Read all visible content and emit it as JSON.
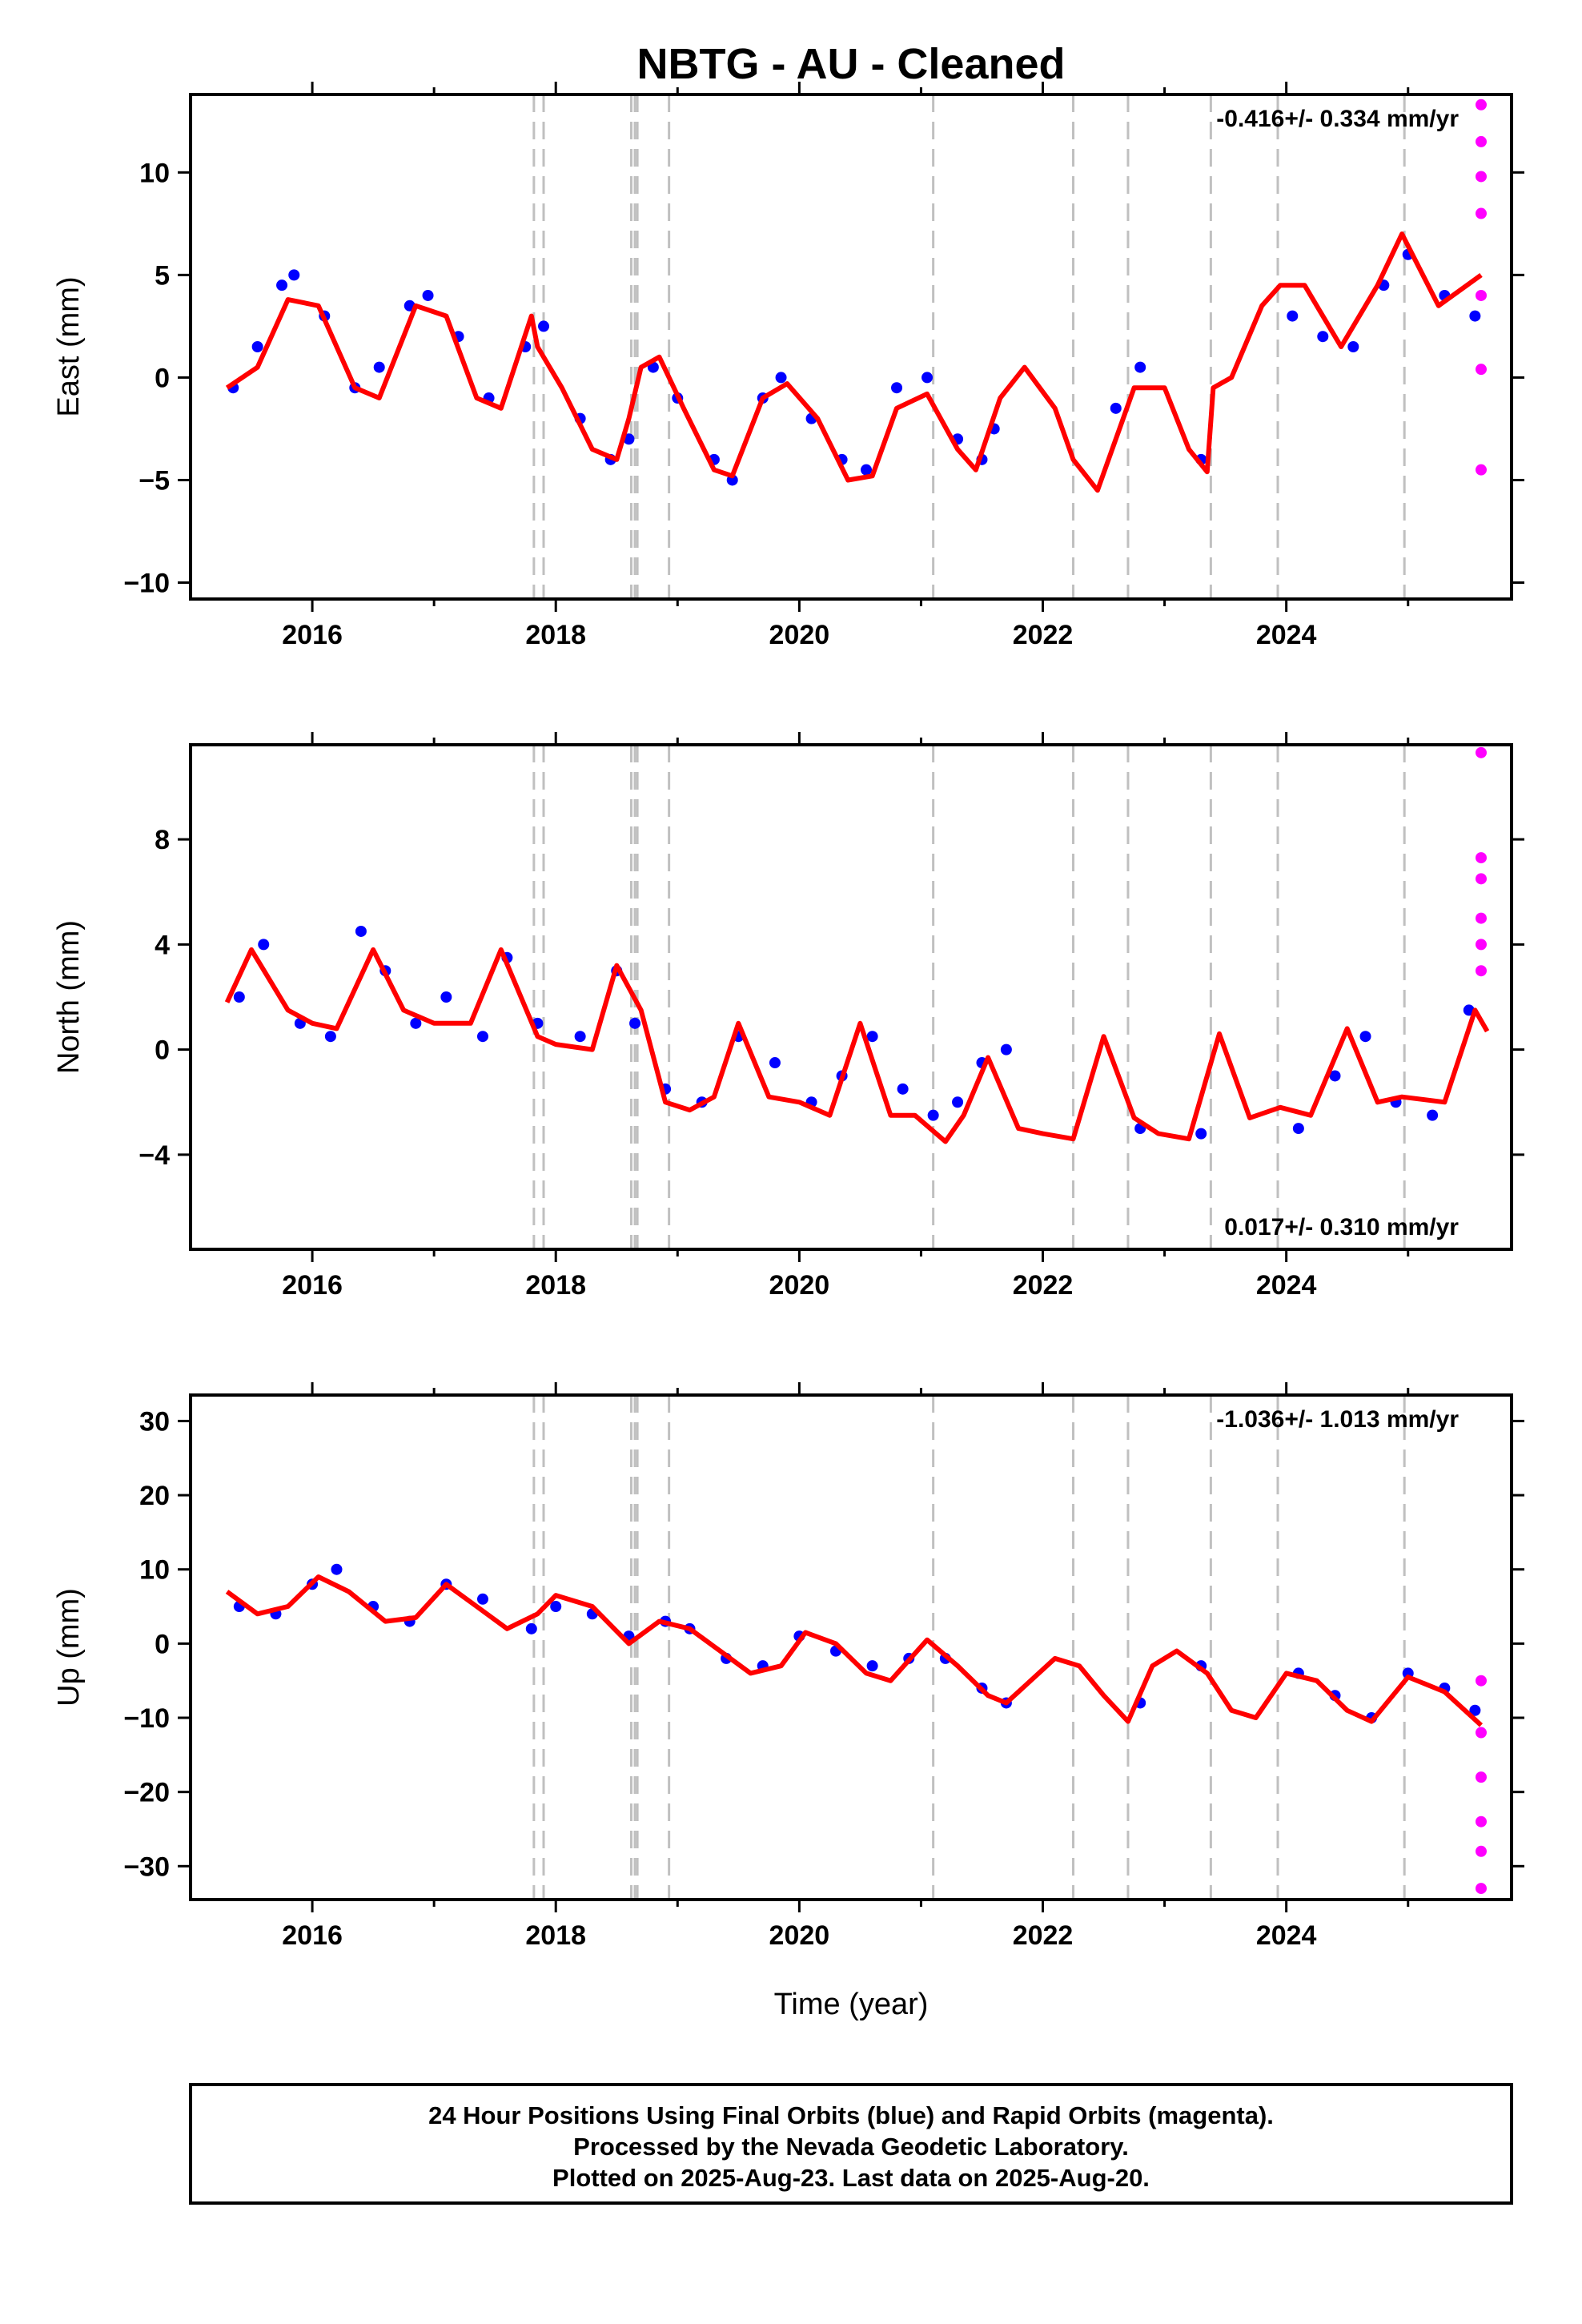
{
  "title": "NBTG  - AU - Cleaned",
  "xlabel": "Time (year)",
  "footer": {
    "lines": [
      "24 Hour Positions Using Final Orbits (blue) and Rapid Orbits (magenta).",
      "Processed by the Nevada Geodetic Laboratory.",
      "Plotted on 2025-Aug-23. Last data on 2025-Aug-20."
    ]
  },
  "colors": {
    "final_orbits": "#0000ff",
    "rapid_orbits": "#ff00ff",
    "model_fit": "#ff0000",
    "events": "#c0c0c0"
  },
  "chart_data": [
    {
      "type": "scatter",
      "ylabel": "East (mm)",
      "rate": "-0.416+/- 0.334 mm/yr",
      "rate_position": "top-right",
      "xlim": [
        2015.0,
        2025.85
      ],
      "ylim": [
        -10.8,
        13.8
      ],
      "xticks": [
        2016,
        2018,
        2020,
        2022,
        2024
      ],
      "yticks": [
        -10,
        -5,
        0,
        5,
        10
      ],
      "series": [
        {
          "name": "Final Orbits",
          "kind": "points",
          "color": "#0000ff",
          "x": [
            2015.35,
            2015.55,
            2015.75,
            2015.85,
            2016.1,
            2016.35,
            2016.55,
            2016.8,
            2016.95,
            2017.2,
            2017.45,
            2017.75,
            2017.9,
            2018.2,
            2018.45,
            2018.6,
            2018.8,
            2019.0,
            2019.3,
            2019.45,
            2019.7,
            2019.85,
            2020.1,
            2020.35,
            2020.55,
            2020.8,
            2021.05,
            2021.3,
            2021.5,
            2021.6,
            2022.6,
            2022.8,
            2023.3,
            2024.05,
            2024.3,
            2024.55,
            2024.8,
            2025.0,
            2025.3,
            2025.55
          ],
          "y": [
            -0.5,
            1.5,
            4.5,
            5.0,
            3.0,
            -0.5,
            0.5,
            3.5,
            4.0,
            2.0,
            -1.0,
            1.5,
            2.5,
            -2.0,
            -4.0,
            -3.0,
            0.5,
            -1.0,
            -4.0,
            -5.0,
            -1.0,
            0.0,
            -2.0,
            -4.0,
            -4.5,
            -0.5,
            0.0,
            -3.0,
            -4.0,
            -2.5,
            -1.5,
            0.5,
            -4.0,
            3.0,
            2.0,
            1.5,
            4.5,
            6.0,
            4.0,
            3.0
          ]
        },
        {
          "name": "Rapid Orbits",
          "kind": "points",
          "color": "#ff00ff",
          "x": [
            2025.6,
            2025.6,
            2025.6,
            2025.6,
            2025.6,
            2025.6,
            2025.6
          ],
          "y": [
            13.3,
            11.5,
            9.8,
            8.0,
            4.0,
            0.4,
            -4.5
          ]
        },
        {
          "name": "Model",
          "kind": "line",
          "color": "#ff0000",
          "x": [
            2015.3,
            2015.55,
            2015.8,
            2016.05,
            2016.35,
            2016.55,
            2016.85,
            2017.1,
            2017.35,
            2017.55,
            2017.8,
            2017.85,
            2018.05,
            2018.3,
            2018.5,
            2018.6,
            2018.7,
            2018.85,
            2019.05,
            2019.3,
            2019.45,
            2019.7,
            2019.9,
            2020.15,
            2020.4,
            2020.6,
            2020.8,
            2021.05,
            2021.3,
            2021.45,
            2021.65,
            2021.85,
            2022.1,
            2022.25,
            2022.45,
            2022.75,
            2023.0,
            2023.2,
            2023.35,
            2023.4,
            2023.55,
            2023.8,
            2023.95,
            2024.15,
            2024.45,
            2024.75,
            2024.95,
            2025.25,
            2025.6
          ],
          "y": [
            -0.5,
            0.5,
            3.8,
            3.5,
            -0.5,
            -1.0,
            3.5,
            3.0,
            -1.0,
            -1.5,
            3.0,
            1.5,
            -0.5,
            -3.5,
            -4.0,
            -2.0,
            0.5,
            1.0,
            -1.5,
            -4.5,
            -4.8,
            -1.0,
            -0.3,
            -2.0,
            -5.0,
            -4.8,
            -1.5,
            -0.8,
            -3.5,
            -4.5,
            -1.0,
            0.5,
            -1.5,
            -4.0,
            -5.5,
            -0.5,
            -0.5,
            -3.5,
            -4.6,
            -0.5,
            0.0,
            3.5,
            4.5,
            4.5,
            1.5,
            4.5,
            7.0,
            3.5,
            5.0
          ]
        }
      ]
    },
    {
      "type": "scatter",
      "ylabel": "North (mm)",
      "rate": "0.017+/- 0.310 mm/yr",
      "rate_position": "bottom-right",
      "xlim": [
        2015.0,
        2025.85
      ],
      "ylim": [
        -7.6,
        11.6
      ],
      "xticks": [
        2016,
        2018,
        2020,
        2022,
        2024
      ],
      "yticks": [
        -4,
        0,
        4,
        8
      ],
      "series": [
        {
          "name": "Final Orbits",
          "kind": "points",
          "color": "#0000ff",
          "x": [
            2015.4,
            2015.6,
            2015.9,
            2016.15,
            2016.4,
            2016.6,
            2016.85,
            2017.1,
            2017.4,
            2017.6,
            2017.85,
            2018.2,
            2018.5,
            2018.65,
            2018.9,
            2019.2,
            2019.5,
            2019.8,
            2020.1,
            2020.35,
            2020.6,
            2020.85,
            2021.1,
            2021.3,
            2021.5,
            2021.7,
            2022.8,
            2023.3,
            2024.1,
            2024.4,
            2024.65,
            2024.9,
            2025.2,
            2025.5
          ],
          "y": [
            2.0,
            4.0,
            1.0,
            0.5,
            4.5,
            3.0,
            1.0,
            2.0,
            0.5,
            3.5,
            1.0,
            0.5,
            3.0,
            1.0,
            -1.5,
            -2.0,
            0.5,
            -0.5,
            -2.0,
            -1.0,
            0.5,
            -1.5,
            -2.5,
            -2.0,
            -0.5,
            0.0,
            -3.0,
            -3.2,
            -3.0,
            -1.0,
            0.5,
            -2.0,
            -2.5,
            1.5
          ]
        },
        {
          "name": "Rapid Orbits",
          "kind": "points",
          "color": "#ff00ff",
          "x": [
            2025.6,
            2025.6,
            2025.6,
            2025.6,
            2025.6,
            2025.6
          ],
          "y": [
            11.3,
            7.3,
            6.5,
            5.0,
            4.0,
            3.0
          ]
        },
        {
          "name": "Model",
          "kind": "line",
          "color": "#ff0000",
          "x": [
            2015.3,
            2015.5,
            2015.8,
            2016.0,
            2016.2,
            2016.5,
            2016.75,
            2017.0,
            2017.3,
            2017.55,
            2017.85,
            2018.0,
            2018.3,
            2018.5,
            2018.7,
            2018.9,
            2019.1,
            2019.3,
            2019.5,
            2019.75,
            2020.0,
            2020.25,
            2020.5,
            2020.75,
            2020.95,
            2021.2,
            2021.35,
            2021.55,
            2021.8,
            2022.0,
            2022.25,
            2022.5,
            2022.75,
            2022.95,
            2023.2,
            2023.45,
            2023.7,
            2023.95,
            2024.2,
            2024.5,
            2024.75,
            2024.95,
            2025.3,
            2025.55,
            2025.65
          ],
          "y": [
            1.8,
            3.8,
            1.5,
            1.0,
            0.8,
            3.8,
            1.5,
            1.0,
            1.0,
            3.8,
            0.5,
            0.2,
            0.0,
            3.2,
            1.5,
            -2.0,
            -2.3,
            -1.8,
            1.0,
            -1.8,
            -2.0,
            -2.5,
            1.0,
            -2.5,
            -2.5,
            -3.5,
            -2.5,
            -0.3,
            -3.0,
            -3.2,
            -3.4,
            0.5,
            -2.6,
            -3.2,
            -3.4,
            0.6,
            -2.6,
            -2.2,
            -2.5,
            0.8,
            -2.0,
            -1.8,
            -2.0,
            1.5,
            0.7
          ]
        }
      ]
    },
    {
      "type": "scatter",
      "ylabel": "Up (mm)",
      "rate": "-1.036+/- 1.013 mm/yr",
      "rate_position": "top-right",
      "xlim": [
        2015.0,
        2025.85
      ],
      "ylim": [
        -34.5,
        33.5
      ],
      "xticks": [
        2016,
        2018,
        2020,
        2022,
        2024
      ],
      "yticks": [
        -30,
        -20,
        -10,
        0,
        10,
        20,
        30
      ],
      "series": [
        {
          "name": "Final Orbits",
          "kind": "points",
          "color": "#0000ff",
          "x": [
            2015.4,
            2015.7,
            2016.0,
            2016.2,
            2016.5,
            2016.8,
            2017.1,
            2017.4,
            2017.8,
            2018.0,
            2018.3,
            2018.6,
            2018.9,
            2019.1,
            2019.4,
            2019.7,
            2020.0,
            2020.3,
            2020.6,
            2020.9,
            2021.2,
            2021.5,
            2021.7,
            2022.8,
            2023.3,
            2024.1,
            2024.4,
            2024.7,
            2025.0,
            2025.3,
            2025.55
          ],
          "y": [
            5.0,
            4.0,
            8.0,
            10.0,
            5.0,
            3.0,
            8.0,
            6.0,
            2.0,
            5.0,
            4.0,
            1.0,
            3.0,
            2.0,
            -2.0,
            -3.0,
            1.0,
            -1.0,
            -3.0,
            -2.0,
            -2.0,
            -6.0,
            -8.0,
            -8.0,
            -3.0,
            -4.0,
            -7.0,
            -10.0,
            -4.0,
            -6.0,
            -9.0
          ]
        },
        {
          "name": "Rapid Orbits",
          "kind": "points",
          "color": "#ff00ff",
          "x": [
            2025.6,
            2025.6,
            2025.6,
            2025.6,
            2025.6,
            2025.6
          ],
          "y": [
            -5.0,
            -12.0,
            -18.0,
            -24.0,
            -28.0,
            -33.0
          ]
        },
        {
          "name": "Model",
          "kind": "line",
          "color": "#ff0000",
          "x": [
            2015.3,
            2015.55,
            2015.8,
            2016.05,
            2016.3,
            2016.6,
            2016.85,
            2017.1,
            2017.35,
            2017.6,
            2017.85,
            2018.0,
            2018.3,
            2018.6,
            2018.85,
            2019.1,
            2019.35,
            2019.6,
            2019.85,
            2020.05,
            2020.3,
            2020.55,
            2020.75,
            2021.05,
            2021.3,
            2021.55,
            2021.7,
            2021.9,
            2022.1,
            2022.3,
            2022.5,
            2022.7,
            2022.9,
            2023.1,
            2023.35,
            2023.55,
            2023.75,
            2024.0,
            2024.25,
            2024.5,
            2024.7,
            2025.0,
            2025.3,
            2025.6
          ],
          "y": [
            7.0,
            4.0,
            5.0,
            9.0,
            7.0,
            3.0,
            3.5,
            8.0,
            5.0,
            2.0,
            4.0,
            6.5,
            5.0,
            0.0,
            3.0,
            2.0,
            -1.0,
            -4.0,
            -3.0,
            1.5,
            0.0,
            -4.0,
            -5.0,
            0.5,
            -3.0,
            -7.0,
            -8.0,
            -5.0,
            -2.0,
            -3.0,
            -7.0,
            -10.5,
            -3.0,
            -1.0,
            -4.0,
            -9.0,
            -10.0,
            -4.0,
            -5.0,
            -9.0,
            -10.5,
            -4.5,
            -6.5,
            -11.0
          ]
        }
      ]
    }
  ]
}
